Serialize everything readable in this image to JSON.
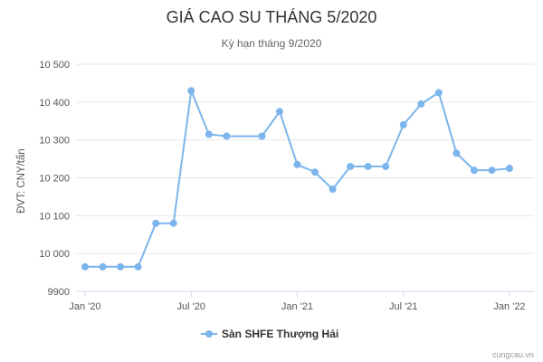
{
  "chart_data": {
    "type": "line",
    "title": "GIÁ CAO SU THÁNG 5/2020",
    "subtitle": "Kỳ hạn tháng 9/2020",
    "ylabel": "ĐVT: CNY/tấn",
    "ylim": [
      9900,
      10500
    ],
    "yticks": [
      9900,
      10000,
      10100,
      10200,
      10300,
      10400,
      10500
    ],
    "ytick_labels": [
      "9900",
      "10 000",
      "10 100",
      "10 200",
      "10 300",
      "10 400",
      "10 500"
    ],
    "xlim": [
      "2020-01",
      "2022-01"
    ],
    "xtick_labels": [
      {
        "x": "2020-01",
        "label": "Jan '20"
      },
      {
        "x": "2020-07",
        "label": "Jul '20"
      },
      {
        "x": "2021-01",
        "label": "Jan '21"
      },
      {
        "x": "2021-07",
        "label": "Jul '21"
      },
      {
        "x": "2022-01",
        "label": "Jan '22"
      }
    ],
    "grid": "horizontal",
    "legend_position": "bottom-center",
    "series": [
      {
        "name": "Sàn SHFE Thượng Hải",
        "color": "#7cb5ec",
        "points": [
          {
            "x": "2020-01",
            "y": 9965
          },
          {
            "x": "2020-02",
            "y": 9965
          },
          {
            "x": "2020-03",
            "y": 9965
          },
          {
            "x": "2020-04",
            "y": 9965
          },
          {
            "x": "2020-05",
            "y": 10080
          },
          {
            "x": "2020-06",
            "y": 10080
          },
          {
            "x": "2020-07",
            "y": 10430
          },
          {
            "x": "2020-08",
            "y": 10315
          },
          {
            "x": "2020-09",
            "y": 10310
          },
          {
            "x": "2020-11",
            "y": 10310
          },
          {
            "x": "2020-12",
            "y": 10375
          },
          {
            "x": "2021-01",
            "y": 10235
          },
          {
            "x": "2021-02",
            "y": 10215
          },
          {
            "x": "2021-03",
            "y": 10170
          },
          {
            "x": "2021-04",
            "y": 10230
          },
          {
            "x": "2021-05",
            "y": 10230
          },
          {
            "x": "2021-06",
            "y": 10230
          },
          {
            "x": "2021-07",
            "y": 10340
          },
          {
            "x": "2021-08",
            "y": 10395
          },
          {
            "x": "2021-09",
            "y": 10425
          },
          {
            "x": "2021-10",
            "y": 10265
          },
          {
            "x": "2021-11",
            "y": 10220
          },
          {
            "x": "2021-12",
            "y": 10220
          },
          {
            "x": "2022-01",
            "y": 10225
          }
        ]
      }
    ]
  },
  "credit": "cungcau.vn"
}
